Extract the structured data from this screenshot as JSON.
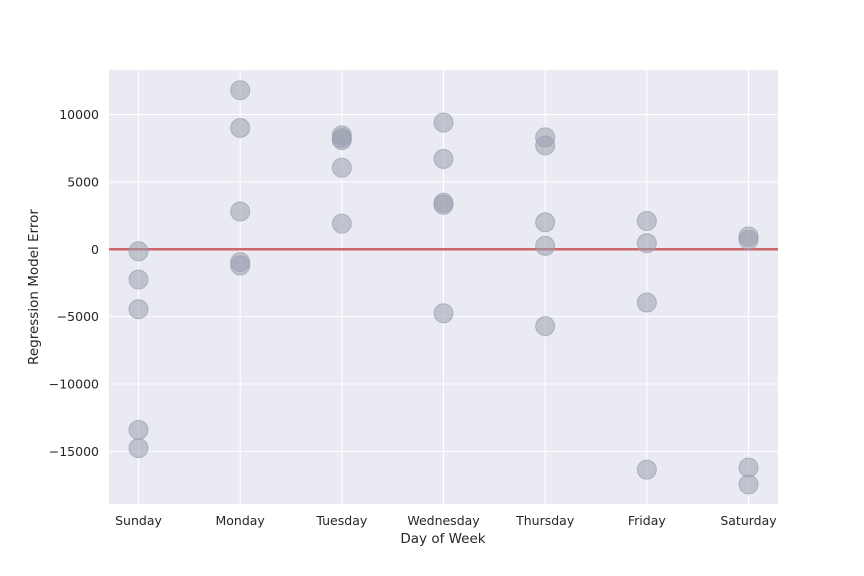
{
  "chart_data": {
    "type": "scatter",
    "title": "",
    "xlabel": "Day of Week",
    "ylabel": "Regression Model Error",
    "categories": [
      "Sunday",
      "Monday",
      "Tuesday",
      "Wednesday",
      "Thursday",
      "Friday",
      "Saturday"
    ],
    "ylim": [
      -18900,
      13300
    ],
    "yticks": [
      -15000,
      -10000,
      -5000,
      0,
      5000,
      10000
    ],
    "ytick_labels": [
      "−15000",
      "−10000",
      "−5000",
      "0",
      "5000",
      "10000"
    ],
    "grid": true,
    "reference_line": {
      "y": 0,
      "color": "#c44e52"
    },
    "colors": {
      "background": "#eaeaf2",
      "grid": "#ffffff",
      "point": "#9aa0ae",
      "reference": "#c44e52"
    },
    "series": [
      {
        "points": [
          {
            "x": "Sunday",
            "y": -150
          },
          {
            "x": "Sunday",
            "y": -2250
          },
          {
            "x": "Sunday",
            "y": -4450
          },
          {
            "x": "Sunday",
            "y": -13400
          },
          {
            "x": "Sunday",
            "y": -14750
          },
          {
            "x": "Monday",
            "y": 11800
          },
          {
            "x": "Monday",
            "y": 9000
          },
          {
            "x": "Monday",
            "y": 2800
          },
          {
            "x": "Monday",
            "y": -950
          },
          {
            "x": "Monday",
            "y": -1200
          },
          {
            "x": "Tuesday",
            "y": 8450
          },
          {
            "x": "Tuesday",
            "y": 8250
          },
          {
            "x": "Tuesday",
            "y": 8100
          },
          {
            "x": "Tuesday",
            "y": 6050
          },
          {
            "x": "Tuesday",
            "y": 1900
          },
          {
            "x": "Wednesday",
            "y": 9400
          },
          {
            "x": "Wednesday",
            "y": 6700
          },
          {
            "x": "Wednesday",
            "y": 3450
          },
          {
            "x": "Wednesday",
            "y": 3300
          },
          {
            "x": "Wednesday",
            "y": -4750
          },
          {
            "x": "Thursday",
            "y": 8300
          },
          {
            "x": "Thursday",
            "y": 7700
          },
          {
            "x": "Thursday",
            "y": 2000
          },
          {
            "x": "Thursday",
            "y": 250
          },
          {
            "x": "Thursday",
            "y": -5700
          },
          {
            "x": "Friday",
            "y": 2100
          },
          {
            "x": "Friday",
            "y": 450
          },
          {
            "x": "Friday",
            "y": -3950
          },
          {
            "x": "Friday",
            "y": -16350
          },
          {
            "x": "Saturday",
            "y": 950
          },
          {
            "x": "Saturday",
            "y": 700
          },
          {
            "x": "Saturday",
            "y": -16200
          },
          {
            "x": "Saturday",
            "y": -17450
          }
        ]
      }
    ]
  }
}
